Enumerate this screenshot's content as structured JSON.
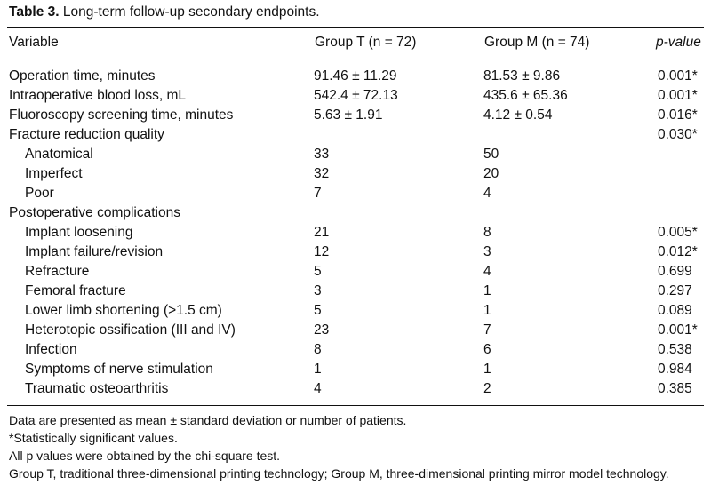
{
  "caption": {
    "label": "Table 3.",
    "title": "Long-term follow-up secondary endpoints."
  },
  "header": [
    "Variable",
    "Group T (n = 72)",
    "Group M (n = 74)",
    "p-value"
  ],
  "rows": [
    {
      "variable": "Operation time, minutes",
      "group_t": "91.46 ± 11.29",
      "group_m": "81.53 ± 9.86",
      "p": "0.001*",
      "indent": false
    },
    {
      "variable": "Intraoperative blood loss, mL",
      "group_t": "542.4 ± 72.13",
      "group_m": "435.6 ± 65.36",
      "p": "0.001*",
      "indent": false
    },
    {
      "variable": "Fluoroscopy screening time, minutes",
      "group_t": "5.63 ± 1.91",
      "group_m": "4.12 ± 0.54",
      "p": "0.016*",
      "indent": false
    },
    {
      "variable": "Fracture reduction quality",
      "group_t": "",
      "group_m": "",
      "p": "0.030*",
      "indent": false
    },
    {
      "variable": "Anatomical",
      "group_t": "33",
      "group_m": "50",
      "p": "",
      "indent": true
    },
    {
      "variable": "Imperfect",
      "group_t": "32",
      "group_m": "20",
      "p": "",
      "indent": true
    },
    {
      "variable": "Poor",
      "group_t": "7",
      "group_m": "4",
      "p": "",
      "indent": true
    },
    {
      "variable": "Postoperative complications",
      "group_t": "",
      "group_m": "",
      "p": "",
      "indent": false
    },
    {
      "variable": "Implant loosening",
      "group_t": "21",
      "group_m": "8",
      "p": "0.005*",
      "indent": true
    },
    {
      "variable": "Implant failure/revision",
      "group_t": "12",
      "group_m": "3",
      "p": "0.012*",
      "indent": true
    },
    {
      "variable": "Refracture",
      "group_t": "5",
      "group_m": "4",
      "p": "0.699",
      "indent": true
    },
    {
      "variable": "Femoral fracture",
      "group_t": "3",
      "group_m": "1",
      "p": "0.297",
      "indent": true
    },
    {
      "variable": "Lower limb shortening (>1.5 cm)",
      "group_t": "5",
      "group_m": "1",
      "p": "0.089",
      "indent": true
    },
    {
      "variable": "Heterotopic ossification (III and IV)",
      "group_t": "23",
      "group_m": "7",
      "p": "0.001*",
      "indent": true
    },
    {
      "variable": "Infection",
      "group_t": "8",
      "group_m": "6",
      "p": "0.538",
      "indent": true
    },
    {
      "variable": "Symptoms of nerve stimulation",
      "group_t": "1",
      "group_m": "1",
      "p": "0.984",
      "indent": true
    },
    {
      "variable": "Traumatic osteoarthritis",
      "group_t": "4",
      "group_m": "2",
      "p": "0.385",
      "indent": true
    }
  ],
  "notes": [
    "Data are presented as mean ± standard deviation or number of patients.",
    "*Statistically significant values.",
    "All p values were obtained by the chi-square test.",
    "Group T, traditional three-dimensional printing technology; Group M, three-dimensional printing mirror model technology."
  ]
}
